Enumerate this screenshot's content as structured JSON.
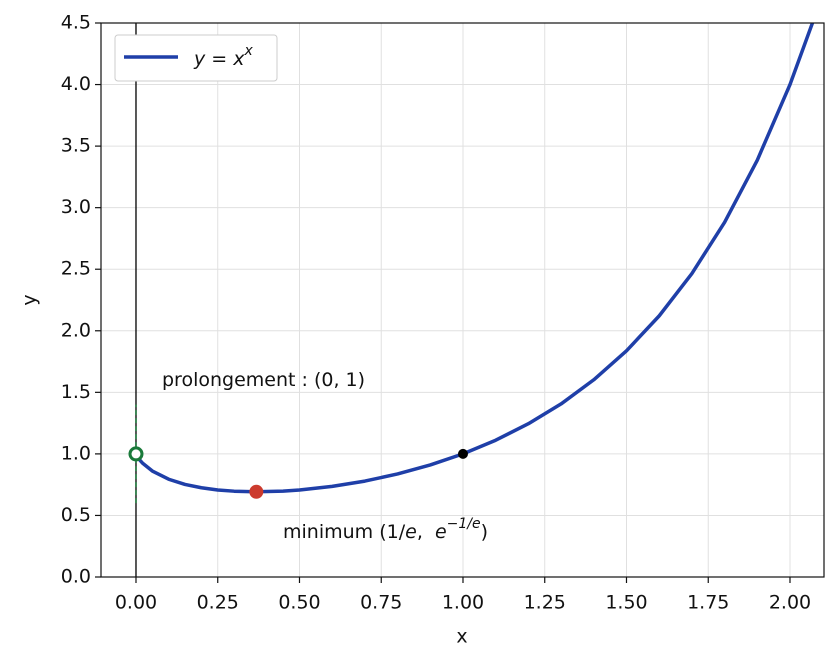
{
  "chart_data": {
    "type": "line",
    "xlabel": "x",
    "ylabel": "y",
    "xlim": [
      -0.107,
      2.104
    ],
    "ylim": [
      0,
      4.5
    ],
    "xticks": [
      {
        "value": 0,
        "label": "0.00"
      },
      {
        "value": 0.25,
        "label": "0.25"
      },
      {
        "value": 0.5,
        "label": "0.50"
      },
      {
        "value": 0.75,
        "label": "0.75"
      },
      {
        "value": 1,
        "label": "1.00"
      },
      {
        "value": 1.25,
        "label": "1.25"
      },
      {
        "value": 1.5,
        "label": "1.50"
      },
      {
        "value": 1.75,
        "label": "1.75"
      },
      {
        "value": 2,
        "label": "2.00"
      }
    ],
    "yticks": [
      {
        "value": 0,
        "label": "0.0"
      },
      {
        "value": 0.5,
        "label": "0.5"
      },
      {
        "value": 1,
        "label": "1.0"
      },
      {
        "value": 1.5,
        "label": "1.5"
      },
      {
        "value": 2,
        "label": "2.0"
      },
      {
        "value": 2.5,
        "label": "2.5"
      },
      {
        "value": 3,
        "label": "3.0"
      },
      {
        "value": 3.5,
        "label": "3.5"
      },
      {
        "value": 4,
        "label": "4.0"
      },
      {
        "value": 4.5,
        "label": "4.5"
      }
    ],
    "grid": true,
    "legend_loc": "upper left",
    "series": [
      {
        "name": [
          "y = x",
          "x"
        ],
        "color": "#1f3fa8",
        "x": [
          0,
          0.001,
          0.01,
          0.02,
          0.05,
          0.1,
          0.15,
          0.2,
          0.25,
          0.3,
          0.368,
          0.45,
          0.5,
          0.6,
          0.7,
          0.8,
          0.9,
          1.0,
          1.1,
          1.2,
          1.3,
          1.4,
          1.5,
          1.6,
          1.7,
          1.8,
          1.9,
          2.0,
          2.07
        ],
        "y": [
          1,
          0.993,
          0.955,
          0.925,
          0.861,
          0.794,
          0.752,
          0.725,
          0.707,
          0.697,
          0.692,
          0.698,
          0.707,
          0.736,
          0.779,
          0.837,
          0.91,
          1,
          1.111,
          1.245,
          1.406,
          1.602,
          1.837,
          2.121,
          2.465,
          2.881,
          3.386,
          4,
          4.51
        ]
      }
    ],
    "axvline": {
      "x": 0,
      "color": "#000000"
    },
    "dashed_segment": {
      "x": 0,
      "ymin": 0.6,
      "ymax": 1.4,
      "color": "#1a7a3a"
    },
    "points": [
      {
        "x": 0,
        "y": 1,
        "color": "#1a7a3a",
        "filled": false
      },
      {
        "x": 0.368,
        "y": 0.692,
        "color": "#cc3b2e",
        "filled": true
      },
      {
        "x": 1,
        "y": 1,
        "color": "#000000",
        "filled": true
      }
    ],
    "annotations": [
      {
        "text": [
          "prolongement : (0, 1)"
        ]
      },
      {
        "text": [
          "minimum (1/",
          "e",
          ",  ",
          "e",
          "−1/e",
          ")"
        ]
      }
    ]
  }
}
